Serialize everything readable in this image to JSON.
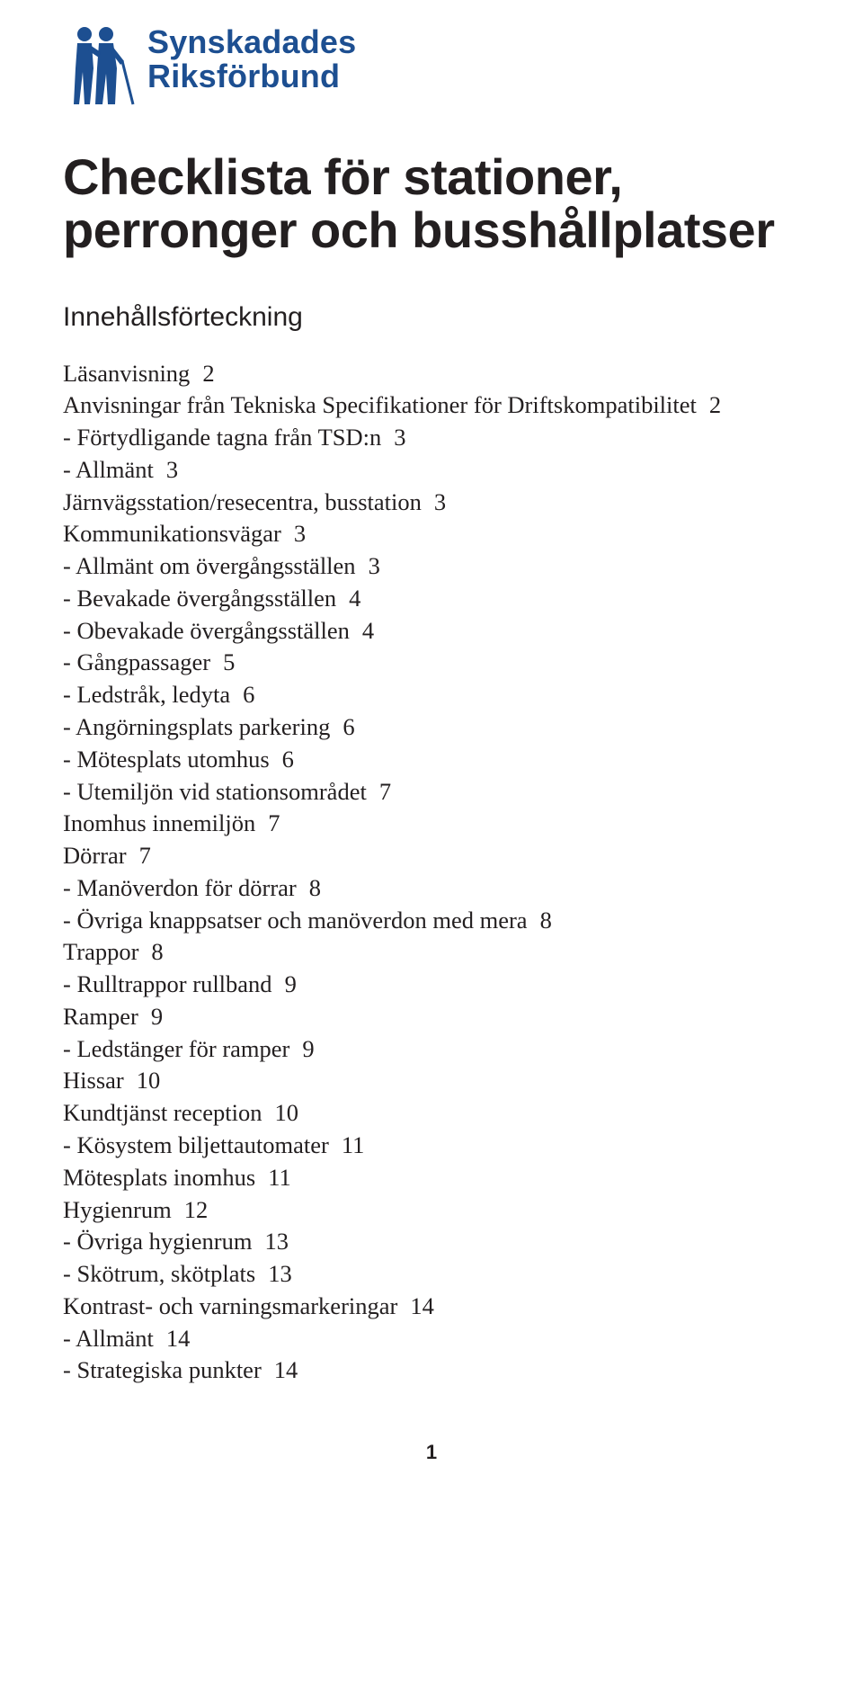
{
  "logo": {
    "line1": "Synskadades",
    "line2": "Riksförbund",
    "brand_color": "#1d4f91"
  },
  "title": "Checklista för stationer, perronger och busshållplatser",
  "subtitle": "Innehållsförteckning",
  "toc": {
    "items": [
      {
        "label": "Läsanvisning",
        "page": "2"
      },
      {
        "label": "Anvisningar från Tekniska Specifikationer för Driftskompatibilitet",
        "page": "2"
      },
      {
        "label": "- Förtydligande tagna från TSD:n",
        "page": "3"
      },
      {
        "label": "- Allmänt",
        "page": "3"
      },
      {
        "label": "Järnvägsstation/resecentra, busstation",
        "page": "3"
      },
      {
        "label": "Kommunikationsvägar",
        "page": "3"
      },
      {
        "label": "- Allmänt om övergångsställen",
        "page": "3"
      },
      {
        "label": "- Bevakade övergångsställen",
        "page": "4"
      },
      {
        "label": "- Obevakade övergångsställen",
        "page": "4"
      },
      {
        "label": "- Gångpassager",
        "page": "5"
      },
      {
        "label": "- Ledstråk, ledyta",
        "page": "6"
      },
      {
        "label": "- Angörningsplats parkering",
        "page": "6"
      },
      {
        "label": "- Mötesplats utomhus",
        "page": "6"
      },
      {
        "label": "- Utemiljön vid stationsområdet",
        "page": "7"
      },
      {
        "label": "Inomhus innemiljön",
        "page": "7"
      },
      {
        "label": "Dörrar",
        "page": "7"
      },
      {
        "label": "- Manöverdon för dörrar",
        "page": "8"
      },
      {
        "label": "- Övriga knappsatser och manöverdon med mera",
        "page": "8"
      },
      {
        "label": "Trappor",
        "page": "8"
      },
      {
        "label": "- Rulltrappor rullband",
        "page": "9"
      },
      {
        "label": "Ramper",
        "page": "9"
      },
      {
        "label": "- Ledstänger för ramper",
        "page": "9"
      },
      {
        "label": "Hissar",
        "page": "10"
      },
      {
        "label": "Kundtjänst reception",
        "page": "10"
      },
      {
        "label": "- Kösystem biljettautomater",
        "page": "11"
      },
      {
        "label": "Mötesplats inomhus",
        "page": "11"
      },
      {
        "label": "Hygienrum",
        "page": "12"
      },
      {
        "label": "- Övriga hygienrum",
        "page": "13"
      },
      {
        "label": "- Skötrum, skötplats",
        "page": "13"
      },
      {
        "label": "Kontrast- och varningsmarkeringar",
        "page": "14"
      },
      {
        "label": "- Allmänt",
        "page": "14"
      },
      {
        "label": "- Strategiska punkter",
        "page": "14"
      }
    ]
  },
  "page_number": "1",
  "typography": {
    "title_fontsize_pt": 42,
    "subtitle_fontsize_pt": 22,
    "body_fontsize_pt": 20,
    "logo_fontsize_pt": 27,
    "page_number_fontsize_pt": 16,
    "body_font": "Adobe Garamond Pro",
    "heading_font": "Myriad Pro"
  },
  "colors": {
    "text": "#231f20",
    "brand": "#1d4f91",
    "background": "#ffffff"
  }
}
